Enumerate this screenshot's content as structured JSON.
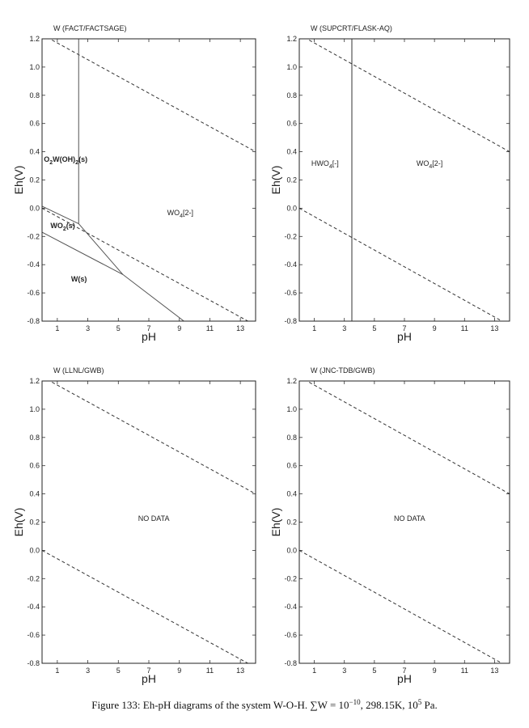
{
  "chart_data": [
    {
      "type": "line",
      "title": "W (FACT/FACTSAGE)",
      "xlabel": "pH",
      "ylabel": "Eh(V)",
      "xlim": [
        0,
        14
      ],
      "ylim": [
        -0.8,
        1.2
      ],
      "xticks": [
        1,
        3,
        5,
        7,
        9,
        11,
        13
      ],
      "yticks": [
        -0.8,
        -0.6,
        -0.4,
        -0.2,
        {
          "value": 0,
          "label": "0.0"
        },
        0.2,
        0.4,
        0.6,
        0.8,
        {
          "value": 1,
          "label": "1.0"
        },
        1.2
      ],
      "series": [
        {
          "x": [
            0,
            14
          ],
          "values": [
            1.23,
            0.4
          ],
          "color": "#333333",
          "dashed": true
        },
        {
          "x": [
            0,
            14
          ],
          "values": [
            0,
            -0.83
          ],
          "color": "#333333",
          "dashed": true
        },
        {
          "x": [
            2.4,
            2.4
          ],
          "values": [
            1.2,
            -0.11
          ],
          "color": "#555555",
          "dashed": false
        },
        {
          "x": [
            0,
            2.4
          ],
          "values": [
            0.014,
            -0.11
          ],
          "color": "#555555",
          "dashed": false
        },
        {
          "x": [
            2.4,
            5.3
          ],
          "values": [
            -0.11,
            -0.47
          ],
          "color": "#555555",
          "dashed": false
        },
        {
          "x": [
            0,
            5.3,
            9.3
          ],
          "values": [
            -0.17,
            -0.47,
            -0.8
          ],
          "color": "#555555",
          "dashed": false
        }
      ],
      "annotations": [
        {
          "text": [
            "O",
            "2",
            "W(OH)",
            "2",
            "(s)"
          ],
          "bold": true
        },
        {
          "text": [
            "WO",
            "2",
            "(s)"
          ],
          "bold": true
        },
        {
          "text": [
            "W(s)"
          ],
          "bold": true
        },
        {
          "text": [
            "WO",
            "4",
            "[2-]"
          ],
          "bold": false
        }
      ]
    },
    {
      "type": "line",
      "title": "W (SUPCRT/FLASK-AQ)",
      "xlabel": "pH",
      "ylabel": "Eh(V)",
      "xlim": [
        0,
        14
      ],
      "ylim": [
        -0.8,
        1.2
      ],
      "xticks": [
        1,
        3,
        5,
        7,
        9,
        11,
        13
      ],
      "yticks": [
        -0.8,
        -0.6,
        -0.4,
        -0.2,
        {
          "value": 0,
          "label": "0.0"
        },
        0.2,
        0.4,
        0.6,
        0.8,
        {
          "value": 1,
          "label": "1.0"
        },
        1.2
      ],
      "series": [
        {
          "x": [
            0,
            14
          ],
          "values": [
            1.23,
            0.4
          ],
          "color": "#333333",
          "dashed": true
        },
        {
          "x": [
            0,
            14
          ],
          "values": [
            0,
            -0.83
          ],
          "color": "#333333",
          "dashed": true
        },
        {
          "x": [
            3.5,
            3.5
          ],
          "values": [
            1.2,
            -0.8
          ],
          "color": "#333333",
          "dashed": false
        }
      ],
      "annotations": [
        {
          "text": [
            "HWO",
            "4",
            "[-]"
          ],
          "bold": false
        },
        {
          "text": [
            "WO",
            "4",
            "[2-]"
          ],
          "bold": false
        }
      ]
    },
    {
      "type": "line",
      "title": "W (LLNL/GWB)",
      "xlabel": "pH",
      "ylabel": "Eh(V)",
      "xlim": [
        0,
        14
      ],
      "ylim": [
        -0.8,
        1.2
      ],
      "xticks": [
        1,
        3,
        5,
        7,
        9,
        11,
        13
      ],
      "yticks": [
        -0.8,
        -0.6,
        -0.4,
        -0.2,
        {
          "value": 0,
          "label": "0.0"
        },
        0.2,
        0.4,
        0.6,
        0.8,
        {
          "value": 1,
          "label": "1.0"
        },
        1.2
      ],
      "series": [
        {
          "x": [
            0,
            14
          ],
          "values": [
            1.23,
            0.4
          ],
          "color": "#333333",
          "dashed": true
        },
        {
          "x": [
            0,
            14
          ],
          "values": [
            0,
            -0.83
          ],
          "color": "#333333",
          "dashed": true
        }
      ],
      "annotations": [
        {
          "text": [
            "NO DATA"
          ],
          "bold": false
        }
      ]
    },
    {
      "type": "line",
      "title": "W (JNC-TDB/GWB)",
      "xlabel": "pH",
      "ylabel": "Eh(V)",
      "xlim": [
        0,
        14
      ],
      "ylim": [
        -0.8,
        1.2
      ],
      "xticks": [
        1,
        3,
        5,
        7,
        9,
        11,
        13
      ],
      "yticks": [
        -0.8,
        -0.6,
        -0.4,
        -0.2,
        {
          "value": 0,
          "label": "0.0"
        },
        0.2,
        0.4,
        0.6,
        0.8,
        {
          "value": 1,
          "label": "1.0"
        },
        1.2
      ],
      "series": [
        {
          "x": [
            0,
            14
          ],
          "values": [
            1.23,
            0.4
          ],
          "color": "#333333",
          "dashed": true
        },
        {
          "x": [
            0,
            14
          ],
          "values": [
            0,
            -0.83
          ],
          "color": "#333333",
          "dashed": true
        }
      ],
      "annotations": [
        {
          "text": [
            "NO DATA"
          ],
          "bold": false
        }
      ]
    }
  ],
  "caption": [
    "Figure 133: Eh-pH diagrams of the system W-O-H. ∑W = 10",
    "−10",
    ", 298.15K, 10",
    "5",
    " Pa."
  ]
}
